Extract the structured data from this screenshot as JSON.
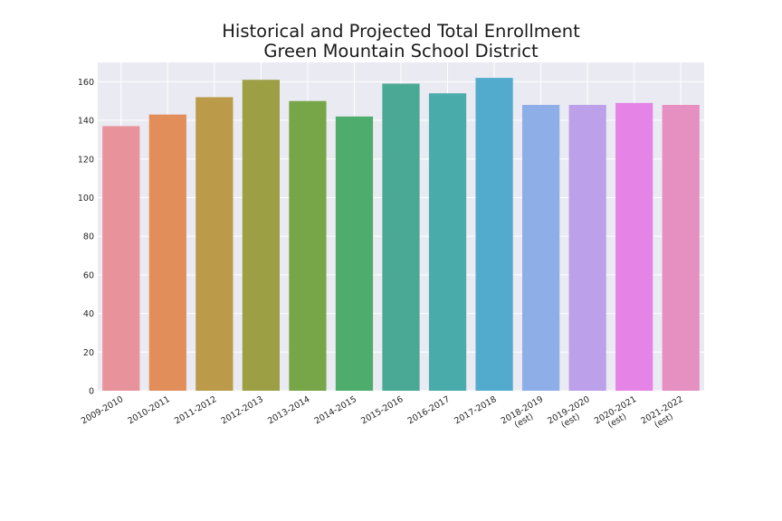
{
  "chart_data": {
    "type": "bar",
    "title": [
      "Historical and Projected Total Enrollment",
      "Green Mountain School District"
    ],
    "xlabel": "",
    "ylabel": "",
    "ylim": [
      0,
      170
    ],
    "yticks": [
      0,
      20,
      40,
      60,
      80,
      100,
      120,
      140,
      160
    ],
    "grid": true,
    "categories": [
      [
        "2009-2010"
      ],
      [
        "2010-2011"
      ],
      [
        "2011-2012"
      ],
      [
        "2012-2013"
      ],
      [
        "2013-2014"
      ],
      [
        "2014-2015"
      ],
      [
        "2015-2016"
      ],
      [
        "2016-2017"
      ],
      [
        "2017-2018"
      ],
      [
        "2018-2019",
        "(est)"
      ],
      [
        "2019-2020",
        "(est)"
      ],
      [
        "2020-2021",
        "(est)"
      ],
      [
        "2021-2022",
        "(est)"
      ]
    ],
    "values": [
      137,
      143,
      152,
      161,
      150,
      142,
      159,
      154,
      162,
      148,
      148,
      149,
      148
    ],
    "colors": [
      "#e8939c",
      "#e28e5b",
      "#bb9a4a",
      "#9d9f45",
      "#77a649",
      "#4ead6c",
      "#4aa994",
      "#4aabab",
      "#52abcc",
      "#8eaee8",
      "#bca0ea",
      "#e683e7",
      "#e690c2"
    ],
    "plot_background": "#eaeaf2",
    "grid_color": "#ffffff"
  }
}
